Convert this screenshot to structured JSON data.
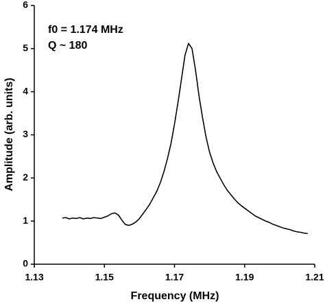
{
  "chart_data": {
    "type": "line",
    "xlabel": "Frequency (MHz)",
    "ylabel": "Amplitude (arb. units)",
    "annotations": [
      "f0 = 1.174 MHz",
      "Q ~ 180"
    ],
    "x": [
      1.138,
      1.139,
      1.14,
      1.141,
      1.142,
      1.143,
      1.144,
      1.145,
      1.146,
      1.147,
      1.148,
      1.149,
      1.15,
      1.151,
      1.152,
      1.153,
      1.154,
      1.155,
      1.156,
      1.157,
      1.158,
      1.159,
      1.16,
      1.161,
      1.162,
      1.163,
      1.164,
      1.165,
      1.166,
      1.167,
      1.168,
      1.169,
      1.17,
      1.171,
      1.172,
      1.173,
      1.174,
      1.175,
      1.176,
      1.177,
      1.178,
      1.179,
      1.18,
      1.181,
      1.182,
      1.183,
      1.184,
      1.185,
      1.186,
      1.187,
      1.188,
      1.189,
      1.19,
      1.191,
      1.192,
      1.193,
      1.194,
      1.195,
      1.196,
      1.197,
      1.198,
      1.199,
      1.2,
      1.201,
      1.202,
      1.203,
      1.204,
      1.205,
      1.206,
      1.207,
      1.208
    ],
    "series": [
      {
        "color": "#000000",
        "values": [
          1.07,
          1.08,
          1.05,
          1.07,
          1.06,
          1.08,
          1.05,
          1.07,
          1.06,
          1.08,
          1.07,
          1.06,
          1.09,
          1.12,
          1.17,
          1.19,
          1.14,
          1.02,
          0.92,
          0.9,
          0.93,
          0.98,
          1.06,
          1.17,
          1.28,
          1.4,
          1.55,
          1.7,
          1.9,
          2.15,
          2.45,
          2.8,
          3.25,
          3.75,
          4.3,
          4.85,
          5.12,
          5.0,
          4.5,
          3.9,
          3.4,
          2.95,
          2.6,
          2.35,
          2.15,
          2.0,
          1.85,
          1.72,
          1.62,
          1.52,
          1.43,
          1.36,
          1.3,
          1.24,
          1.18,
          1.12,
          1.08,
          1.04,
          1.0,
          0.97,
          0.93,
          0.9,
          0.87,
          0.84,
          0.82,
          0.8,
          0.77,
          0.75,
          0.74,
          0.72,
          0.71
        ]
      }
    ],
    "xlim": [
      1.13,
      1.21
    ],
    "xticks": [
      1.13,
      1.15,
      1.17,
      1.19,
      1.21
    ],
    "ylim": [
      0,
      6
    ],
    "yticks": [
      0,
      1,
      2,
      3,
      4,
      5,
      6
    ],
    "grid": false
  }
}
